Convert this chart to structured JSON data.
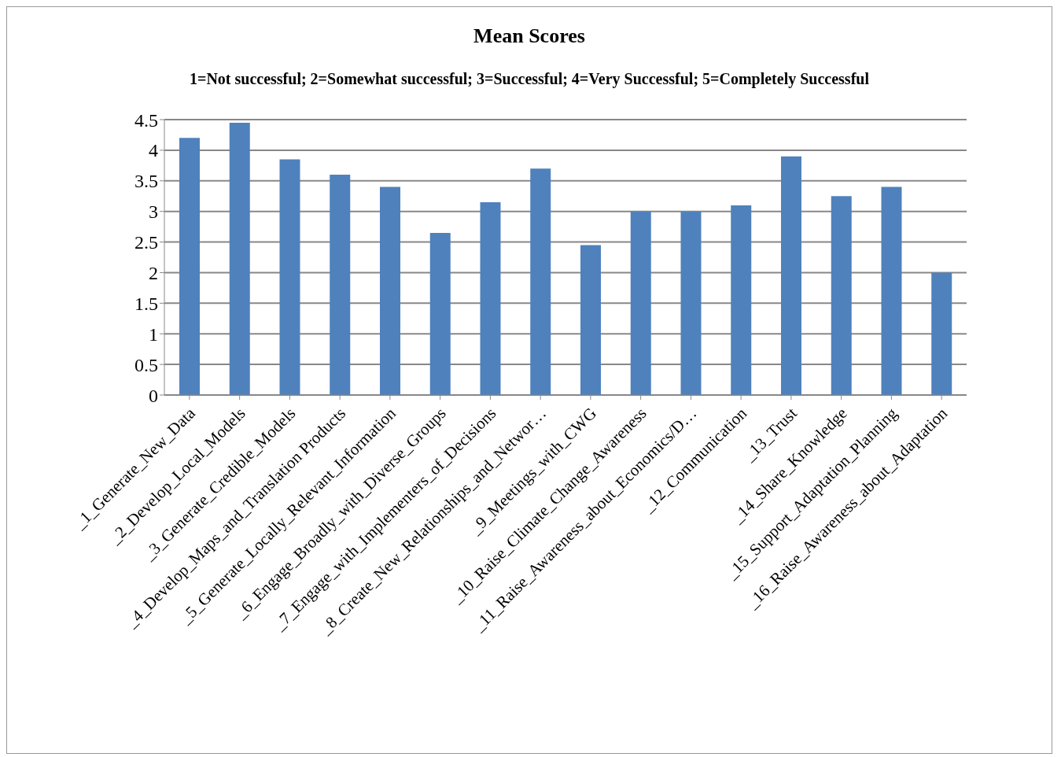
{
  "chart_data": {
    "type": "bar",
    "title": "Mean Scores",
    "subtitle": "1=Not successful; 2=Somewhat successful; 3=Successful; 4=Very Successful; 5=Completely Successful",
    "categories": [
      "_1_Generate_New_Data",
      "_2_Develop_Local_Models",
      "_3_Generate_Credible_Models",
      "_4_Develop_Maps_and_Translation Products",
      "_5_Generate_Locally_Relevant_Information",
      "_6_Engage_Broadly_with_Diverse_Groups",
      "_7_Engage_with_Implementers_of_Decisions",
      "_8_Create_New_Relationships_and_Networ…",
      "_9_Meetings_with_CWG",
      "_10_Raise_Climate_Change_Awareness",
      "_11_Raise_Awareness_about_Economics/D…",
      "_12_Communication",
      "_13_Trust",
      "_14_Share_Knowledge",
      "_15_Support_Adaptation_Planning",
      "_16_Raise_Awareness_about_Adaptation"
    ],
    "values": [
      4.2,
      4.45,
      3.85,
      3.6,
      3.4,
      2.65,
      3.15,
      3.7,
      2.45,
      3.0,
      3.0,
      3.1,
      3.9,
      3.25,
      3.4,
      2.0
    ],
    "color": "#4f81bd",
    "ylim": [
      0,
      4.5
    ],
    "yticks": [
      0,
      0.5,
      1,
      1.5,
      2,
      2.5,
      3,
      3.5,
      4,
      4.5
    ],
    "grid": "y"
  }
}
